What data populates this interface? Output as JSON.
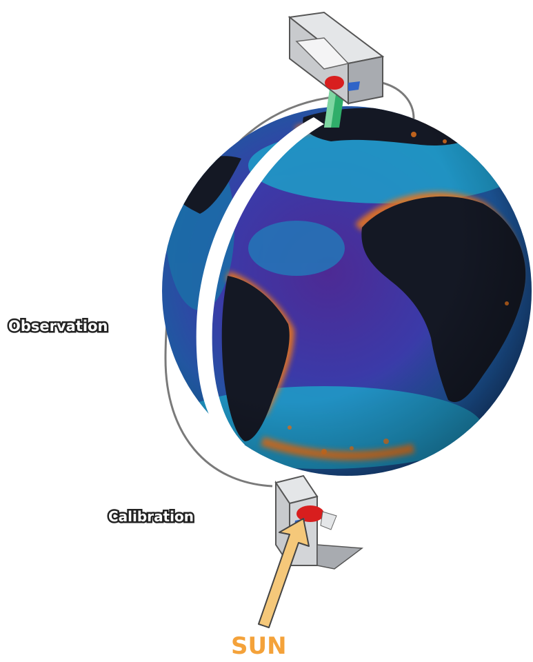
{
  "diagram": {
    "labels": {
      "observation": "Observation",
      "calibration": "Calibration",
      "sun": "SUN"
    },
    "colors": {
      "ocean_deep": "#4a2a8a",
      "ocean_mid": "#1e5aa0",
      "ocean_cyan": "#1f9fc8",
      "land": "#141824",
      "coast_glow": "#e8761c",
      "sun_label": "#f4a23a",
      "sun_arrow": "#f5c87a",
      "orbit_line": "#7a7a7a",
      "instrument_body": "#d8dadc",
      "instrument_red": "#d81e1e",
      "instrument_blue": "#2f64c8",
      "beam_green": "#2fae6a"
    },
    "icons": {
      "top_instrument": "satellite-sensor-icon",
      "bottom_instrument": "calibration-sensor-icon",
      "sun_arrow": "sunlight-arrow-icon"
    }
  }
}
